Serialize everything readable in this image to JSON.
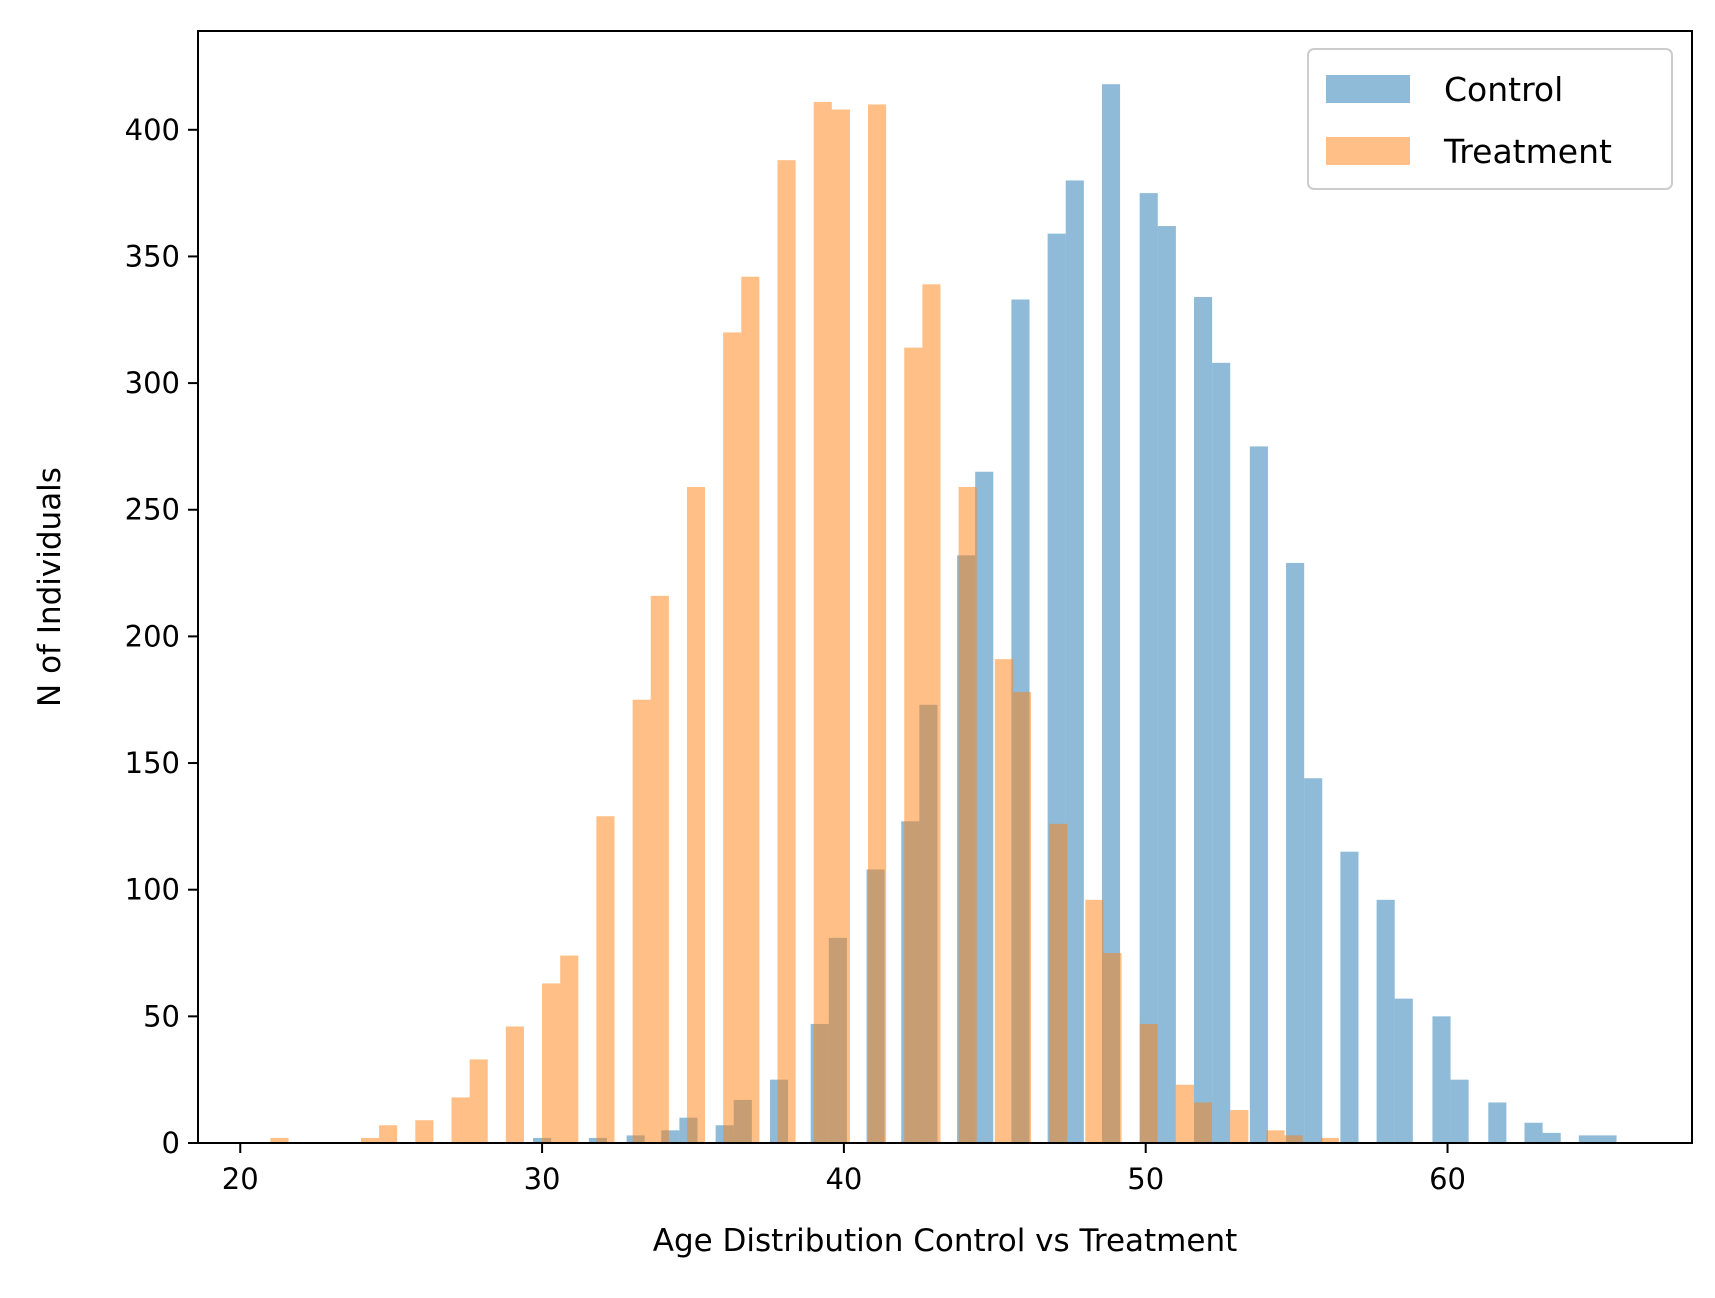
{
  "chart_data": {
    "type": "bar",
    "subtype": "overlapping-histogram",
    "xlabel": "Age Distribution Control vs Treatment",
    "ylabel": "N of Individuals",
    "xlim": [
      18.6,
      68.1
    ],
    "ylim": [
      0,
      439
    ],
    "x_ticks": [
      20,
      30,
      40,
      50,
      60
    ],
    "y_ticks": [
      0,
      50,
      100,
      150,
      200,
      250,
      300,
      350,
      400
    ],
    "grid": false,
    "legend_position": "top-right",
    "bar_opacity": 0.5,
    "series": [
      {
        "name": "Control",
        "color": "#1f77b4",
        "bins": [
          {
            "x0": 29.7,
            "x1": 30.3,
            "value": 2
          },
          {
            "x0": 31.55,
            "x1": 32.15,
            "value": 2
          },
          {
            "x0": 32.8,
            "x1": 33.4,
            "value": 3
          },
          {
            "x0": 33.95,
            "x1": 34.55,
            "value": 5
          },
          {
            "x0": 34.55,
            "x1": 35.15,
            "value": 10
          },
          {
            "x0": 35.75,
            "x1": 36.35,
            "value": 7
          },
          {
            "x0": 36.35,
            "x1": 36.95,
            "value": 17
          },
          {
            "x0": 37.55,
            "x1": 38.15,
            "value": 25
          },
          {
            "x0": 38.9,
            "x1": 39.5,
            "value": 47
          },
          {
            "x0": 39.5,
            "x1": 40.1,
            "value": 81
          },
          {
            "x0": 40.75,
            "x1": 41.35,
            "value": 108
          },
          {
            "x0": 41.9,
            "x1": 42.5,
            "value": 127
          },
          {
            "x0": 42.5,
            "x1": 43.1,
            "value": 173
          },
          {
            "x0": 43.75,
            "x1": 44.35,
            "value": 232
          },
          {
            "x0": 44.35,
            "x1": 44.95,
            "value": 265
          },
          {
            "x0": 45.55,
            "x1": 46.15,
            "value": 333
          },
          {
            "x0": 46.75,
            "x1": 47.35,
            "value": 359
          },
          {
            "x0": 47.35,
            "x1": 47.95,
            "value": 380
          },
          {
            "x0": 48.55,
            "x1": 49.15,
            "value": 418
          },
          {
            "x0": 49.8,
            "x1": 50.4,
            "value": 375
          },
          {
            "x0": 50.4,
            "x1": 51.0,
            "value": 362
          },
          {
            "x0": 51.6,
            "x1": 52.2,
            "value": 334
          },
          {
            "x0": 52.2,
            "x1": 52.8,
            "value": 308
          },
          {
            "x0": 53.45,
            "x1": 54.05,
            "value": 275
          },
          {
            "x0": 54.65,
            "x1": 55.25,
            "value": 229
          },
          {
            "x0": 55.25,
            "x1": 55.85,
            "value": 144
          },
          {
            "x0": 56.45,
            "x1": 57.05,
            "value": 115
          },
          {
            "x0": 57.65,
            "x1": 58.25,
            "value": 96
          },
          {
            "x0": 58.25,
            "x1": 58.85,
            "value": 57
          },
          {
            "x0": 59.5,
            "x1": 60.1,
            "value": 50
          },
          {
            "x0": 60.1,
            "x1": 60.7,
            "value": 25
          },
          {
            "x0": 61.35,
            "x1": 61.95,
            "value": 16
          },
          {
            "x0": 62.55,
            "x1": 63.15,
            "value": 8
          },
          {
            "x0": 63.15,
            "x1": 63.75,
            "value": 4
          },
          {
            "x0": 64.35,
            "x1": 65.0,
            "value": 3
          },
          {
            "x0": 65.0,
            "x1": 65.6,
            "value": 3
          }
        ]
      },
      {
        "name": "Treatment",
        "color": "#ff7f0e",
        "bins": [
          {
            "x0": 21.0,
            "x1": 21.6,
            "value": 2
          },
          {
            "x0": 24.0,
            "x1": 24.6,
            "value": 2
          },
          {
            "x0": 24.6,
            "x1": 25.2,
            "value": 7
          },
          {
            "x0": 25.8,
            "x1": 26.4,
            "value": 9
          },
          {
            "x0": 27.0,
            "x1": 27.6,
            "value": 18
          },
          {
            "x0": 27.6,
            "x1": 28.2,
            "value": 33
          },
          {
            "x0": 28.8,
            "x1": 29.4,
            "value": 46
          },
          {
            "x0": 30.0,
            "x1": 30.6,
            "value": 63
          },
          {
            "x0": 30.6,
            "x1": 31.2,
            "value": 74
          },
          {
            "x0": 31.8,
            "x1": 32.4,
            "value": 129
          },
          {
            "x0": 33.0,
            "x1": 33.6,
            "value": 175
          },
          {
            "x0": 33.6,
            "x1": 34.2,
            "value": 216
          },
          {
            "x0": 34.8,
            "x1": 35.4,
            "value": 259
          },
          {
            "x0": 36.0,
            "x1": 36.6,
            "value": 320
          },
          {
            "x0": 36.6,
            "x1": 37.2,
            "value": 342
          },
          {
            "x0": 37.8,
            "x1": 38.4,
            "value": 388
          },
          {
            "x0": 39.0,
            "x1": 39.6,
            "value": 411
          },
          {
            "x0": 39.6,
            "x1": 40.2,
            "value": 408
          },
          {
            "x0": 40.8,
            "x1": 41.4,
            "value": 410
          },
          {
            "x0": 42.0,
            "x1": 42.6,
            "value": 314
          },
          {
            "x0": 42.6,
            "x1": 43.2,
            "value": 339
          },
          {
            "x0": 43.8,
            "x1": 44.4,
            "value": 259
          },
          {
            "x0": 45.0,
            "x1": 45.6,
            "value": 191
          },
          {
            "x0": 45.6,
            "x1": 46.2,
            "value": 178
          },
          {
            "x0": 46.8,
            "x1": 47.4,
            "value": 126
          },
          {
            "x0": 48.0,
            "x1": 48.6,
            "value": 96
          },
          {
            "x0": 48.6,
            "x1": 49.2,
            "value": 75
          },
          {
            "x0": 49.8,
            "x1": 50.4,
            "value": 47
          },
          {
            "x0": 51.0,
            "x1": 51.6,
            "value": 23
          },
          {
            "x0": 51.6,
            "x1": 52.2,
            "value": 16
          },
          {
            "x0": 52.8,
            "x1": 53.4,
            "value": 13
          },
          {
            "x0": 54.0,
            "x1": 54.6,
            "value": 5
          },
          {
            "x0": 54.6,
            "x1": 55.2,
            "value": 3
          },
          {
            "x0": 55.8,
            "x1": 56.4,
            "value": 2
          }
        ]
      }
    ]
  }
}
